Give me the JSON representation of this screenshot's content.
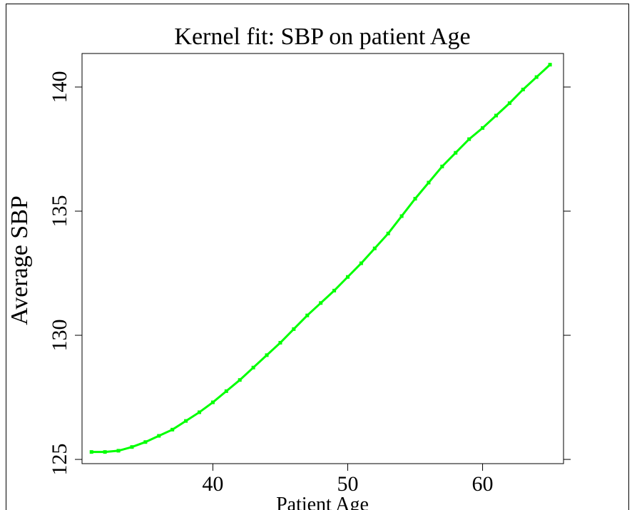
{
  "chart_data": {
    "type": "line",
    "title": "Kernel fit: SBP on patient Age",
    "x_label": "Patient Age",
    "y_label": "Average SBP",
    "x": [
      31,
      32,
      33,
      34,
      35,
      36,
      37,
      38,
      39,
      40,
      41,
      42,
      43,
      44,
      45,
      46,
      47,
      48,
      49,
      50,
      51,
      52,
      53,
      54,
      55,
      56,
      57,
      58,
      59,
      60,
      61,
      62,
      63,
      64,
      65
    ],
    "series": [
      {
        "name": "Average SBP",
        "color": "#00ff00",
        "values": [
          125.3,
          125.3,
          125.35,
          125.5,
          125.7,
          125.95,
          126.2,
          126.55,
          126.9,
          127.3,
          127.75,
          128.2,
          128.7,
          129.2,
          129.7,
          130.25,
          130.8,
          131.3,
          131.8,
          132.35,
          132.9,
          133.5,
          134.1,
          134.8,
          135.5,
          136.15,
          136.8,
          137.35,
          137.9,
          138.35,
          138.85,
          139.35,
          139.9,
          140.4,
          140.9
        ]
      }
    ],
    "xlim": [
      30.3,
      66
    ],
    "ylim": [
      124.83,
      141.35
    ],
    "xticks": [
      40,
      50,
      60
    ],
    "yticks": [
      125,
      130,
      135,
      140
    ],
    "grid": false
  }
}
